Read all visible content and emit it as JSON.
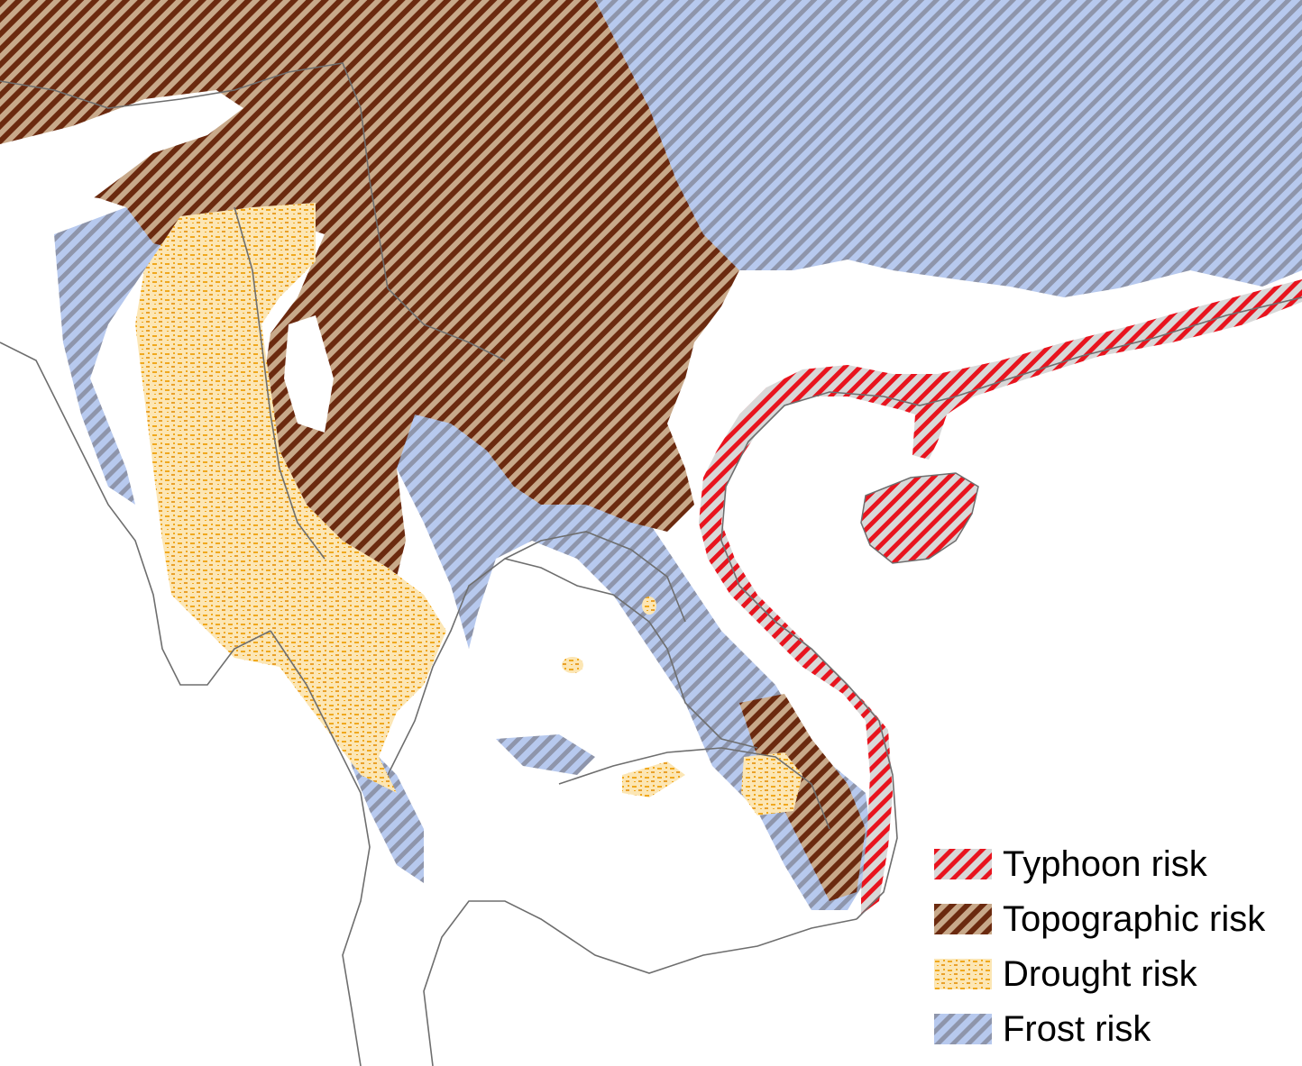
{
  "map": {
    "layers": [
      {
        "id": "typhoon",
        "hatch": "diagonal-red-grey",
        "color": "#e8141e",
        "base": "#d4d4d4"
      },
      {
        "id": "topographic",
        "hatch": "diagonal-brown-tan",
        "color": "#6b2a0f",
        "base": "#c8a98a"
      },
      {
        "id": "drought",
        "hatch": "dotted-yellow",
        "color": "#f0a81e",
        "base": "#fce6b4"
      },
      {
        "id": "frost",
        "hatch": "diagonal-blue-grey",
        "color": "#9aa0b4",
        "base": "#b4c8f0"
      }
    ],
    "boundary_color": "#6e6e6e"
  },
  "legend": {
    "items": [
      {
        "label": "Typhoon risk",
        "swatch": "typhoon"
      },
      {
        "label": "Topographic risk",
        "swatch": "topographic"
      },
      {
        "label": "Drought risk",
        "swatch": "drought"
      },
      {
        "label": "Frost risk",
        "swatch": "frost"
      }
    ]
  }
}
